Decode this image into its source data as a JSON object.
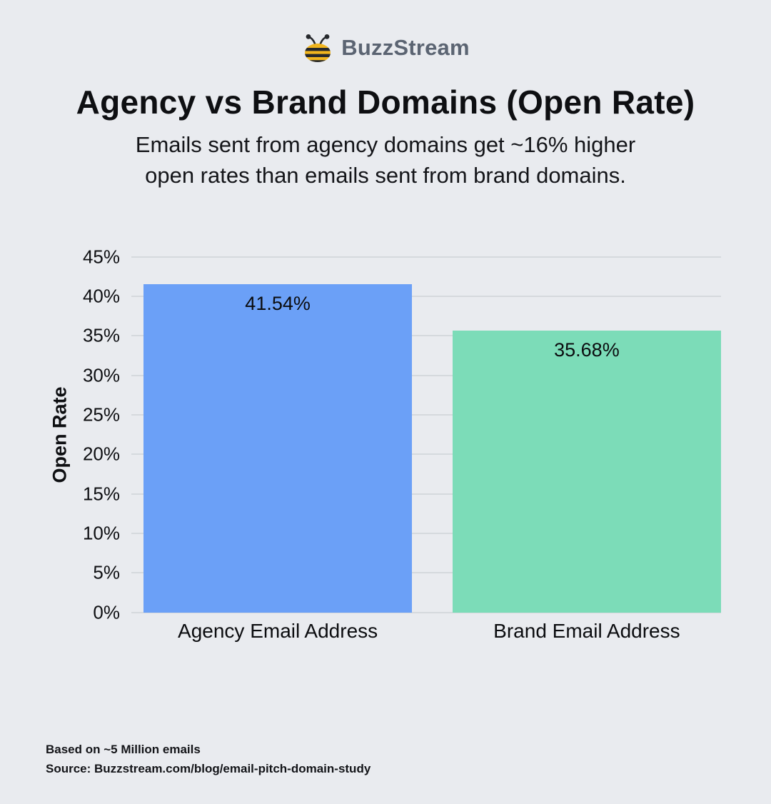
{
  "logo": {
    "brand": "BuzzStream"
  },
  "header": {
    "title": "Agency vs Brand Domains (Open Rate)",
    "subtitle_lines": [
      "Emails sent from agency domains get ~16% higher",
      "open rates than emails sent from brand domains."
    ]
  },
  "chart_data": {
    "type": "bar",
    "title": "Agency vs Brand Domains (Open Rate)",
    "categories": [
      "Agency Email Address",
      "Brand Email Address"
    ],
    "values": [
      41.54,
      35.68
    ],
    "value_labels": [
      "41.54%",
      "35.68%"
    ],
    "colors": [
      "#6ba0f7",
      "#7cdcb8"
    ],
    "xlabel": "",
    "ylabel": "Open Rate",
    "ylim": [
      0,
      45
    ],
    "ytick_step": 5,
    "ytick_suffix": "%",
    "grid": "horizontal",
    "legend": "none"
  },
  "footer": {
    "line1": "Based on ~5 Million emails",
    "line2": "Source: Buzzstream.com/blog/email-pitch-domain-study"
  },
  "colors": {
    "background": "#e9ebef",
    "gridline": "#d5d9dd",
    "bar_agency": "#6ba0f7",
    "bar_brand": "#7cdcb8",
    "logo_text": "#5b6472",
    "bee_yellow": "#f1b51e",
    "bee_dark": "#26282c"
  }
}
